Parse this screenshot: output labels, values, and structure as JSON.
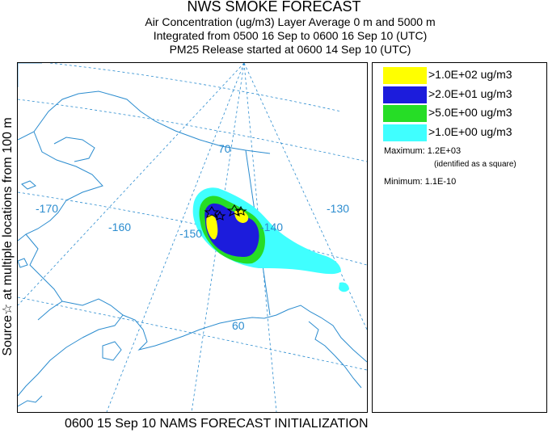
{
  "header": {
    "title": "NWS SMOKE FORECAST",
    "line2": "Air Concentration (ug/m3) Layer Average    0 m and  5000 m",
    "line3": "Integrated from 0500 16 Sep to 0600 16 Sep 10 (UTC)",
    "line4": "PM25 Release started at 0600 14 Sep 10 (UTC)"
  },
  "side_label": "Source☆ at multiple locations from  100 m",
  "map": {
    "graticule_labels": [
      "70",
      "60",
      "-170",
      "-160",
      "-150",
      "-140",
      "-130"
    ],
    "colors": {
      "coast": "#2b8ccf",
      "graticule": "#2b8ccf",
      "level_1": "#40ffff",
      "level_2": "#26dd26",
      "level_3": "#1c1cdc",
      "level_4": "#ffff00"
    }
  },
  "legend": {
    "levels": [
      {
        "color": "#ffff00",
        "label": ">1.0E+02 ug/m3"
      },
      {
        "color": "#1c1cdc",
        "label": ">2.0E+01 ug/m3"
      },
      {
        "color": "#26dd26",
        "label": ">5.0E+00 ug/m3"
      },
      {
        "color": "#40ffff",
        "label": ">1.0E+00 ug/m3"
      }
    ],
    "maximum": "Maximum: 1.2E+03",
    "maximum_note": "(identified as a square)",
    "minimum": "Minimum: 1.1E-10"
  },
  "footer": "0600 15 Sep 10 NAMS FORECAST INITIALIZATION"
}
